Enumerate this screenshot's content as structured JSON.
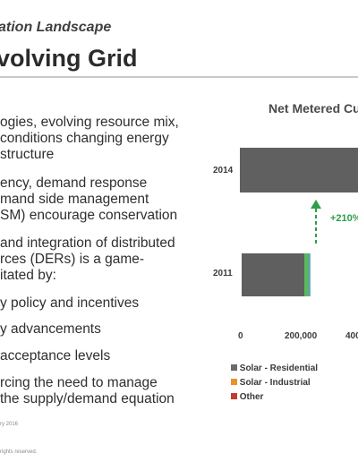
{
  "header": {
    "subtitle": "ation Landscape",
    "title": "volving Grid"
  },
  "bullets": [
    {
      "lines": [
        "ogies, evolving resource mix,",
        "conditions changing energy",
        "structure"
      ]
    },
    {
      "lines": [
        "ency, demand response",
        "mand side management",
        "SM) encourage conservation"
      ]
    },
    {
      "lines": [
        "and integration of distributed",
        "rces (DERs) is a game-",
        "itated by:"
      ]
    }
  ],
  "sub_bullets": [
    {
      "lines": [
        "y policy and incentives"
      ]
    },
    {
      "lines": [
        "y advancements"
      ]
    },
    {
      "lines": [
        "acceptance levels"
      ]
    },
    {
      "lines": [
        "rcing the need to manage",
        "the supply/demand equation"
      ]
    }
  ],
  "footer": {
    "date": "ry 2016",
    "rights": "rights reserved."
  },
  "chart_data": {
    "type": "bar",
    "orientation": "horizontal",
    "stacked": true,
    "title": "Net Metered Cu",
    "categories": [
      "2014",
      "2011"
    ],
    "series": [
      {
        "name": "Solar - Residential",
        "color": "#5f5f5f",
        "values": [
          null,
          200000
        ]
      },
      {
        "name": "Solar - Industrial",
        "color": "#5cb85c",
        "values": [
          null,
          15000
        ]
      },
      {
        "name": "Other",
        "color": "#3a86c8",
        "values": [
          null,
          4000
        ]
      }
    ],
    "x_ticks": [
      "0",
      "200,000",
      "400"
    ],
    "annotation": "+210%",
    "annotation_color": "#2e9e48",
    "grid": false,
    "legend": [
      {
        "label": "Solar - Residential",
        "color": "#6b6b6b"
      },
      {
        "label": "Solar - Industrial",
        "color": "#e8932a"
      },
      {
        "label": "Other",
        "color": "#c33b2e"
      }
    ],
    "legend_position": "bottom-left"
  }
}
